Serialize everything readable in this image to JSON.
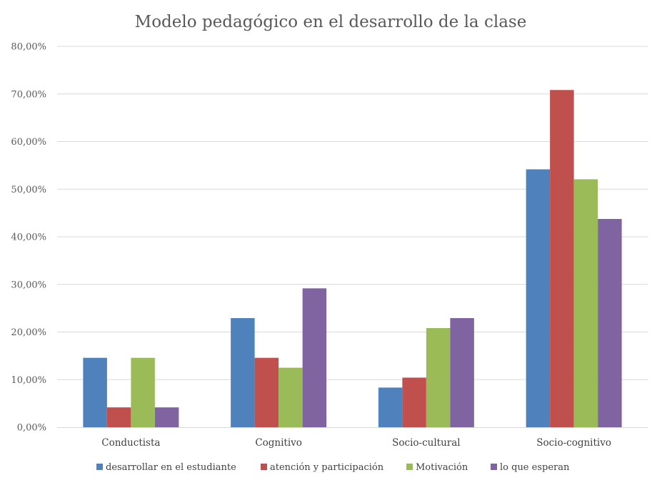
{
  "chart_data": {
    "type": "bar",
    "title": "Modelo pedagógico en el desarrollo de la clase",
    "xlabel": "",
    "ylabel": "",
    "categories": [
      "Conductista",
      "Cognitivo",
      "Socio-cultural",
      "Socio-cognitivo"
    ],
    "series": [
      {
        "name": "desarrollar en el estudiante",
        "color": "#4F81BD",
        "values": [
          14.58,
          22.92,
          8.33,
          54.17
        ]
      },
      {
        "name": "atención y participación",
        "color": "#C0504D",
        "values": [
          4.17,
          14.58,
          10.42,
          70.83
        ]
      },
      {
        "name": "Motivación",
        "color": "#9BBB59",
        "values": [
          14.58,
          12.5,
          20.83,
          52.08
        ]
      },
      {
        "name": "lo que esperan",
        "color": "#8064A2",
        "values": [
          4.17,
          29.17,
          22.92,
          43.75
        ]
      }
    ],
    "y_ticks": [
      "0,00%",
      "10,00%",
      "20,00%",
      "30,00%",
      "40,00%",
      "50,00%",
      "60,00%",
      "70,00%",
      "80,00%"
    ],
    "ylim": [
      0,
      80
    ],
    "grid": true,
    "legend_position": "bottom"
  }
}
